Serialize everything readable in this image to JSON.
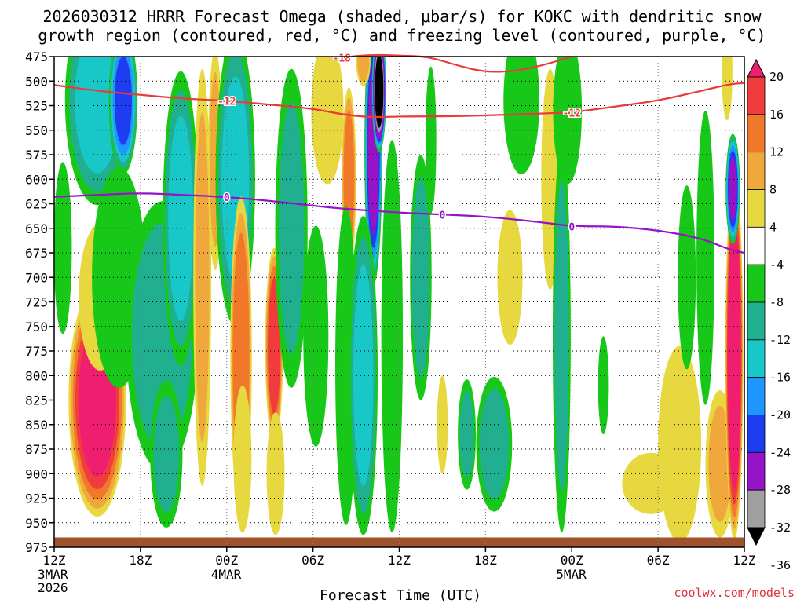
{
  "chart_data": {
    "type": "heatmap",
    "title_line1": "2026030312 HRRR Forecast Omega (shaded, μbar/s) for KOKC with dendritic snow",
    "title_line2": "growth region (contoured, red, °C) and freezing level (contoured, purple, °C)",
    "xlabel": "Forecast Time (UTC)",
    "credit": "coolwx.com/models",
    "x_range": [
      0,
      48
    ],
    "y_range": [
      475,
      975
    ],
    "y_ticks": [
      475,
      500,
      525,
      550,
      575,
      600,
      625,
      650,
      675,
      700,
      725,
      750,
      775,
      800,
      825,
      850,
      875,
      900,
      925,
      950,
      975
    ],
    "y_tick_labels": [
      "475",
      "500",
      "525",
      "550",
      "575",
      "600",
      "625",
      "650",
      "675",
      "700",
      "725",
      "750",
      "775",
      "800",
      "825",
      "850",
      "875",
      "900",
      "925",
      "950",
      "975"
    ],
    "x_ticks": [
      {
        "hour": 0,
        "label": "12Z",
        "date": "3MAR",
        "year": "2026"
      },
      {
        "hour": 6,
        "label": "18Z"
      },
      {
        "hour": 12,
        "label": "00Z",
        "date": "4MAR"
      },
      {
        "hour": 18,
        "label": "06Z"
      },
      {
        "hour": 24,
        "label": "12Z"
      },
      {
        "hour": 30,
        "label": "18Z"
      },
      {
        "hour": 36,
        "label": "00Z",
        "date": "5MAR"
      },
      {
        "hour": 42,
        "label": "06Z"
      },
      {
        "hour": 48,
        "label": "12Z"
      }
    ],
    "colorbar": {
      "labels": [
        "20",
        "16",
        "12",
        "8",
        "4",
        "-4",
        "-8",
        "-12",
        "-16",
        "-20",
        "-24",
        "-28",
        "-32",
        "-36"
      ],
      "colors": [
        "#f01e6e",
        "#f03c3c",
        "#f07828",
        "#f0a83c",
        "#e8d840",
        "#ffffff",
        "#18c818",
        "#20b090",
        "#18c8c8",
        "#1e96ff",
        "#1e3cf0",
        "#9614c8",
        "#a0a0a0",
        "#000000"
      ]
    },
    "contours": {
      "freezing_level_0C": {
        "color": "#9614c8",
        "label": "0",
        "x": [
          0,
          3,
          6,
          9,
          12,
          15,
          18,
          20,
          22,
          24,
          27,
          30,
          34,
          36,
          39,
          42,
          45,
          47,
          48
        ],
        "y": [
          618,
          616,
          614,
          616,
          618,
          622,
          627,
          630,
          632,
          634,
          636,
          638,
          644,
          648,
          648,
          652,
          660,
          672,
          675
        ]
      },
      "dendritic_minus12C": {
        "color": "#e83c3c",
        "label": "-12",
        "x": [
          0,
          3,
          6,
          9,
          12,
          15,
          18,
          20,
          22,
          24,
          27,
          30,
          34,
          36,
          39,
          42,
          45,
          47,
          48
        ],
        "y": [
          504,
          510,
          514,
          518,
          520,
          524,
          528,
          534,
          537,
          536,
          536,
          535,
          533,
          532,
          526,
          520,
          510,
          503,
          502
        ]
      },
      "dendritic_minus18C": {
        "color": "#e83c3c",
        "label": "-18",
        "x": [
          20,
          22,
          24,
          26,
          28,
          30,
          32,
          34,
          36
        ],
        "y": [
          476,
          473,
          474,
          475,
          484,
          491,
          490,
          484,
          475
        ]
      }
    },
    "omega_cells": [
      {
        "t": 3,
        "p": 825,
        "sx": 1.6,
        "sy": 95,
        "v": 22
      },
      {
        "t": 3.2,
        "p": 720,
        "sx": 1.2,
        "sy": 60,
        "v": 7
      },
      {
        "t": 0.6,
        "p": 670,
        "sx": 0.5,
        "sy": 70,
        "v": -6
      },
      {
        "t": 3,
        "p": 520,
        "sx": 1.8,
        "sy": 85,
        "v": -12
      },
      {
        "t": 4.8,
        "p": 520,
        "sx": 0.8,
        "sy": 60,
        "v": -20
      },
      {
        "t": 4.5,
        "p": 700,
        "sx": 1.5,
        "sy": 90,
        "v": -6
      },
      {
        "t": 7.5,
        "p": 760,
        "sx": 2.0,
        "sy": 110,
        "v": -10
      },
      {
        "t": 8.8,
        "p": 640,
        "sx": 1.0,
        "sy": 120,
        "v": -12
      },
      {
        "t": 7.8,
        "p": 880,
        "sx": 0.9,
        "sy": 60,
        "v": -8
      },
      {
        "t": 10.3,
        "p": 700,
        "sx": 0.5,
        "sy": 170,
        "v": 8
      },
      {
        "t": 11.2,
        "p": 580,
        "sx": 0.4,
        "sy": 90,
        "v": 8
      },
      {
        "t": 12.5,
        "p": 500,
        "sx": 0.6,
        "sy": 55,
        "v": -38
      },
      {
        "t": 12.6,
        "p": 600,
        "sx": 1.1,
        "sy": 120,
        "v": -12
      },
      {
        "t": 13,
        "p": 780,
        "sx": 0.6,
        "sy": 130,
        "v": 15
      },
      {
        "t": 13.1,
        "p": 885,
        "sx": 0.5,
        "sy": 60,
        "v": 6
      },
      {
        "t": 15.3,
        "p": 770,
        "sx": 0.5,
        "sy": 80,
        "v": 18
      },
      {
        "t": 15.4,
        "p": 900,
        "sx": 0.5,
        "sy": 50,
        "v": 5
      },
      {
        "t": 16.5,
        "p": 650,
        "sx": 0.9,
        "sy": 130,
        "v": -8
      },
      {
        "t": 19,
        "p": 530,
        "sx": 0.9,
        "sy": 60,
        "v": 6
      },
      {
        "t": 18.2,
        "p": 760,
        "sx": 0.7,
        "sy": 90,
        "v": -7
      },
      {
        "t": 20.5,
        "p": 600,
        "sx": 0.4,
        "sy": 75,
        "v": 14
      },
      {
        "t": 20.3,
        "p": 790,
        "sx": 0.6,
        "sy": 130,
        "v": -6
      },
      {
        "t": 22.2,
        "p": 570,
        "sx": 0.5,
        "sy": 110,
        "v": -26
      },
      {
        "t": 22.6,
        "p": 510,
        "sx": 0.4,
        "sy": 50,
        "v": -40
      },
      {
        "t": 21.5,
        "p": 800,
        "sx": 0.8,
        "sy": 130,
        "v": -12
      },
      {
        "t": 23.5,
        "p": 760,
        "sx": 0.6,
        "sy": 160,
        "v": -6
      },
      {
        "t": 21.5,
        "p": 480,
        "sx": 0.4,
        "sy": 20,
        "v": 9
      },
      {
        "t": 26.2,
        "p": 560,
        "sx": 0.3,
        "sy": 60,
        "v": -7
      },
      {
        "t": 27,
        "p": 850,
        "sx": 0.3,
        "sy": 40,
        "v": 5
      },
      {
        "t": 25.5,
        "p": 700,
        "sx": 0.6,
        "sy": 100,
        "v": -9
      },
      {
        "t": 28.7,
        "p": 860,
        "sx": 0.5,
        "sy": 45,
        "v": -8
      },
      {
        "t": 30.6,
        "p": 870,
        "sx": 1.0,
        "sy": 55,
        "v": -9
      },
      {
        "t": 31.7,
        "p": 700,
        "sx": 0.7,
        "sy": 55,
        "v": 5
      },
      {
        "t": 32.5,
        "p": 520,
        "sx": 1.0,
        "sy": 60,
        "v": -7
      },
      {
        "t": 34.5,
        "p": 600,
        "sx": 0.5,
        "sy": 90,
        "v": 6
      },
      {
        "t": 35.3,
        "p": 760,
        "sx": 0.5,
        "sy": 160,
        "v": -8
      },
      {
        "t": 35.7,
        "p": 530,
        "sx": 0.8,
        "sy": 60,
        "v": -7
      },
      {
        "t": 38.2,
        "p": 810,
        "sx": 0.3,
        "sy": 40,
        "v": -6
      },
      {
        "t": 41.5,
        "p": 910,
        "sx": 1.6,
        "sy": 25,
        "v": 6
      },
      {
        "t": 43.5,
        "p": 870,
        "sx": 1.2,
        "sy": 80,
        "v": 5
      },
      {
        "t": 44,
        "p": 700,
        "sx": 0.5,
        "sy": 75,
        "v": -7
      },
      {
        "t": 45.3,
        "p": 680,
        "sx": 0.5,
        "sy": 120,
        "v": -6
      },
      {
        "t": 46.3,
        "p": 890,
        "sx": 0.8,
        "sy": 60,
        "v": 8
      },
      {
        "t": 47.3,
        "p": 780,
        "sx": 0.5,
        "sy": 150,
        "v": 26
      },
      {
        "t": 47.2,
        "p": 610,
        "sx": 0.4,
        "sy": 45,
        "v": -24
      },
      {
        "t": 46.8,
        "p": 490,
        "sx": 0.3,
        "sy": 40,
        "v": 5
      }
    ],
    "ground": {
      "color": "#a0522d",
      "top_pressure": 965
    }
  }
}
